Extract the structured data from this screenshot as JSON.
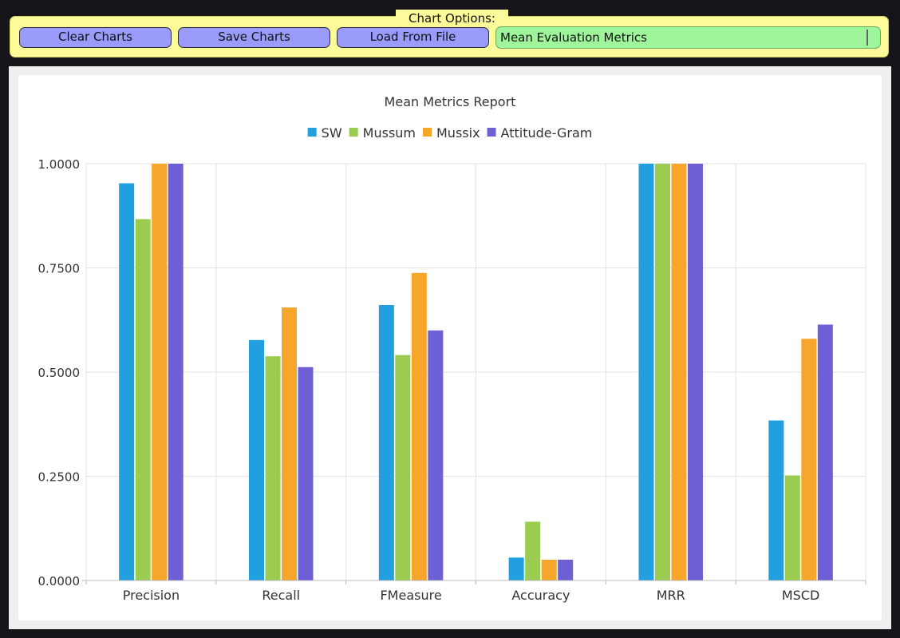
{
  "options": {
    "title": "Chart Options:",
    "buttons": {
      "clear": "Clear Charts",
      "save": "Save Charts",
      "load": "Load From File"
    },
    "chart_select_value": "Mean Evaluation Metrics"
  },
  "colors": {
    "SW": "#229fdf",
    "Mussum": "#9bcb50",
    "Mussix": "#f6a62a",
    "Attitude-Gram": "#6e5fd4"
  },
  "chart_data": {
    "type": "bar",
    "title": "Mean Metrics Report",
    "categories": [
      "Precision",
      "Recall",
      "FMeasure",
      "Accuracy",
      "MRR",
      "MSCD"
    ],
    "series": [
      {
        "name": "SW",
        "values": [
          0.953,
          0.577,
          0.661,
          0.055,
          1.0,
          0.384
        ]
      },
      {
        "name": "Mussum",
        "values": [
          0.867,
          0.538,
          0.541,
          0.141,
          1.0,
          0.252
        ]
      },
      {
        "name": "Mussix",
        "values": [
          1.0,
          0.655,
          0.738,
          0.05,
          1.0,
          0.58
        ]
      },
      {
        "name": "Attitude-Gram",
        "values": [
          1.0,
          0.512,
          0.6,
          0.05,
          1.0,
          0.614
        ]
      }
    ],
    "ylim": [
      0,
      1
    ],
    "yticks": [
      "0.0000",
      "0.2500",
      "0.5000",
      "0.7500",
      "1.0000"
    ],
    "grid": true,
    "legend": "top-center"
  }
}
